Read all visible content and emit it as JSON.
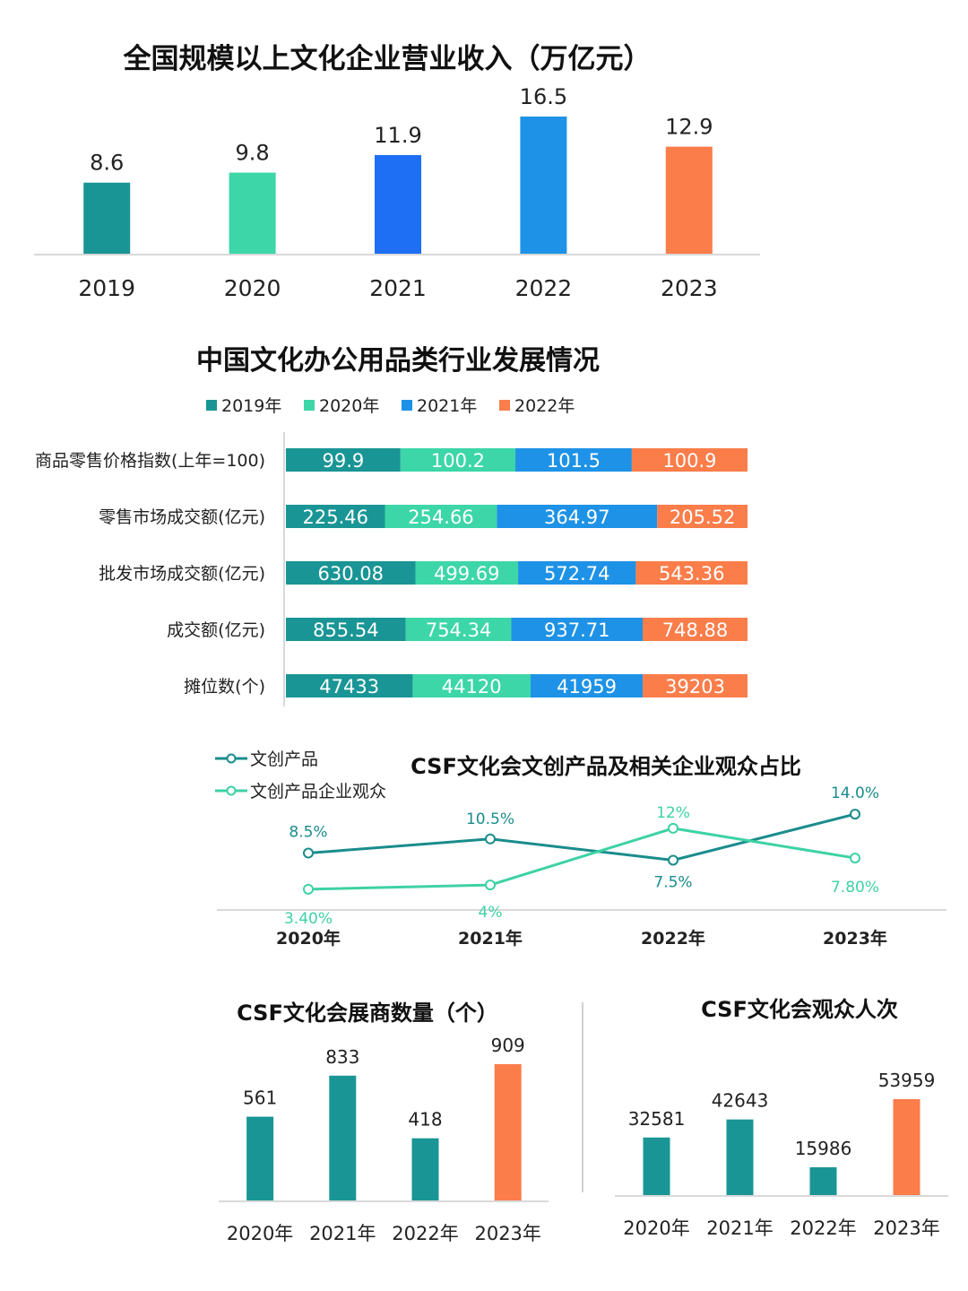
{
  "colors": {
    "teal": "#1a9595",
    "mint": "#3dd6a8",
    "blue": "#1f6ff5",
    "sky": "#1e92e6",
    "orange": "#fa7d4a",
    "line1": "#1a8c8c",
    "line2": "#3ed2a4"
  },
  "chart_data": [
    {
      "type": "bar",
      "title": "全国规模以上文化企业营业收入（万亿元）",
      "categories": [
        "2019",
        "2020",
        "2021",
        "2022",
        "2023"
      ],
      "values": [
        8.6,
        9.8,
        11.9,
        16.5,
        12.9
      ],
      "value_labels": [
        "8.6",
        "9.8",
        "11.9",
        "16.5",
        "12.9"
      ],
      "bar_colors": [
        "#1a9595",
        "#3dd6a8",
        "#1f6ff5",
        "#1e92e6",
        "#fa7d4a"
      ],
      "ylim": [
        0,
        16.5
      ]
    },
    {
      "type": "bar",
      "orientation": "horizontal",
      "stacked": true,
      "title": "中国文化办公用品类行业发展情况",
      "legend_position": "top",
      "categories": [
        "商品零售价格指数(上年=100)",
        "零售市场成交额(亿元)",
        "批发市场成交额(亿元)",
        "成交额(亿元)",
        "摊位数(个)"
      ],
      "series": [
        {
          "name": "2019年",
          "color": "#1a9595",
          "values": [
            99.9,
            225.46,
            630.08,
            855.54,
            47433
          ],
          "labels": [
            "99.9",
            "225.46",
            "630.08",
            "855.54",
            "47433"
          ]
        },
        {
          "name": "2020年",
          "color": "#3dd6a8",
          "values": [
            100.2,
            254.66,
            499.69,
            754.34,
            44120
          ],
          "labels": [
            "100.2",
            "254.66",
            "499.69",
            "754.34",
            "44120"
          ]
        },
        {
          "name": "2021年",
          "color": "#1e92e6",
          "values": [
            101.5,
            364.97,
            572.74,
            937.71,
            41959
          ],
          "labels": [
            "101.5",
            "364.97",
            "572.74",
            "937.71",
            "41959"
          ]
        },
        {
          "name": "2022年",
          "color": "#fa7d4a",
          "values": [
            100.9,
            205.52,
            543.36,
            748.88,
            39203
          ],
          "labels": [
            "100.9",
            "205.52",
            "543.36",
            "748.88",
            "39203"
          ]
        }
      ]
    },
    {
      "type": "line",
      "title": "CSF文化会文创产品及相关企业观众占比",
      "legend_position": "top-left",
      "categories": [
        "2020年",
        "2021年",
        "2022年",
        "2023年"
      ],
      "series": [
        {
          "name": "文创产品",
          "color": "#1a8c8c",
          "values": [
            8.5,
            10.5,
            7.5,
            14.0
          ],
          "labels": [
            "8.5%",
            "10.5%",
            "7.5%",
            "14.0%"
          ]
        },
        {
          "name": "文创产品企业观众",
          "color": "#3ed2a4",
          "values": [
            3.4,
            4,
            12,
            7.8
          ],
          "labels": [
            "3.40%",
            "4%",
            "12%",
            "7.80%"
          ]
        }
      ]
    },
    {
      "type": "bar",
      "title": "CSF文化会展商数量（个）",
      "categories": [
        "2020年",
        "2021年",
        "2022年",
        "2023年"
      ],
      "values": [
        561,
        833,
        418,
        909
      ],
      "value_labels": [
        "561",
        "833",
        "418",
        "909"
      ],
      "bar_colors": [
        "#1a9595",
        "#1a9595",
        "#1a9595",
        "#fa7d4a"
      ],
      "ylim": [
        0,
        909
      ]
    },
    {
      "type": "bar",
      "title": "CSF文化会观众人次",
      "categories": [
        "2020年",
        "2021年",
        "2022年",
        "2023年"
      ],
      "values": [
        32581,
        42643,
        15986,
        53959
      ],
      "value_labels": [
        "32581",
        "42643",
        "15986",
        "53959"
      ],
      "bar_colors": [
        "#1a9595",
        "#1a9595",
        "#1a9595",
        "#fa7d4a"
      ],
      "ylim": [
        0,
        53959
      ]
    }
  ]
}
